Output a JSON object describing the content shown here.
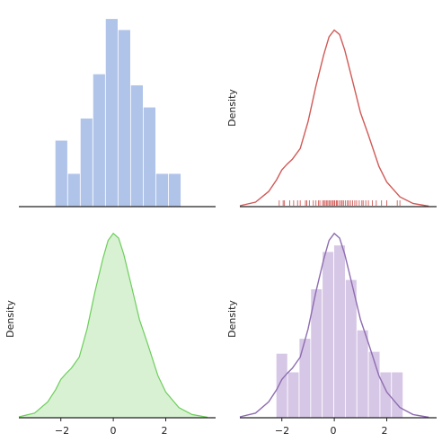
{
  "chart_data": [
    {
      "type": "bar",
      "panel": "top-left",
      "bin_edges": [
        -2.22,
        -1.74,
        -1.26,
        -0.78,
        -0.3,
        0.18,
        0.66,
        1.14,
        1.62,
        2.1,
        2.58
      ],
      "counts": [
        6,
        3,
        8,
        12,
        17,
        16,
        11,
        9,
        3,
        3
      ],
      "color": "#b0c4ea",
      "xlim": [
        -3.6,
        3.9
      ],
      "ylim": [
        0,
        17.3
      ],
      "xlabel": "",
      "ylabel": "",
      "grid": false,
      "legend": null
    },
    {
      "type": "line",
      "panel": "top-right",
      "kde_x": [
        -3.6,
        -3.0,
        -2.5,
        -2.2,
        -2.0,
        -1.8,
        -1.6,
        -1.3,
        -1.0,
        -0.7,
        -0.4,
        -0.2,
        0.0,
        0.2,
        0.4,
        0.7,
        1.0,
        1.3,
        1.7,
        2.0,
        2.5,
        3.0,
        3.6
      ],
      "kde_y": [
        0.002,
        0.01,
        0.034,
        0.06,
        0.082,
        0.095,
        0.106,
        0.13,
        0.19,
        0.27,
        0.34,
        0.38,
        0.395,
        0.385,
        0.35,
        0.28,
        0.21,
        0.16,
        0.09,
        0.055,
        0.022,
        0.007,
        0.001
      ],
      "rug": [
        -2.1,
        -1.95,
        -1.9,
        -1.7,
        -1.55,
        -1.4,
        -1.3,
        -1.1,
        -1.05,
        -0.95,
        -0.8,
        -0.7,
        -0.6,
        -0.55,
        -0.45,
        -0.4,
        -0.35,
        -0.3,
        -0.25,
        -0.2,
        -0.15,
        -0.1,
        -0.05,
        0.0,
        0.02,
        0.08,
        0.12,
        0.18,
        0.25,
        0.3,
        0.35,
        0.42,
        0.5,
        0.55,
        0.62,
        0.7,
        0.78,
        0.85,
        0.95,
        1.05,
        1.1,
        1.2,
        1.3,
        1.45,
        1.6,
        1.8,
        2.0,
        2.4,
        2.5
      ],
      "color": "#d05a57",
      "xlim": [
        -3.6,
        3.9
      ],
      "ylim": [
        0,
        0.41
      ],
      "xlabel": "",
      "ylabel": "Density",
      "grid": false,
      "legend": null
    },
    {
      "type": "area",
      "panel": "bottom-left",
      "kde_x": [
        -3.6,
        -3.0,
        -2.5,
        -2.2,
        -2.0,
        -1.8,
        -1.6,
        -1.3,
        -1.0,
        -0.7,
        -0.4,
        -0.2,
        0.0,
        0.2,
        0.4,
        0.7,
        1.0,
        1.3,
        1.7,
        2.0,
        2.5,
        3.0,
        3.6
      ],
      "kde_y": [
        0.002,
        0.01,
        0.034,
        0.06,
        0.082,
        0.095,
        0.106,
        0.13,
        0.19,
        0.27,
        0.34,
        0.38,
        0.395,
        0.385,
        0.35,
        0.28,
        0.21,
        0.16,
        0.09,
        0.055,
        0.022,
        0.007,
        0.001
      ],
      "line_color": "#6dce5b",
      "fill_color": "#d8f1d3",
      "xlim": [
        -3.6,
        3.9
      ],
      "ylim": [
        0,
        0.41
      ],
      "xticks": [
        -2,
        0,
        2
      ],
      "xlabel": "",
      "ylabel": "Density",
      "grid": false,
      "legend": null
    },
    {
      "type": "bar",
      "panel": "bottom-right",
      "bin_edges": [
        -2.22,
        -1.78,
        -1.34,
        -0.9,
        -0.46,
        -0.02,
        0.42,
        0.86,
        1.3,
        1.74,
        2.18,
        2.62
      ],
      "density": [
        0.138,
        0.098,
        0.17,
        0.276,
        0.356,
        0.37,
        0.296,
        0.188,
        0.142,
        0.098,
        0.098
      ],
      "kde_x": [
        -3.6,
        -3.0,
        -2.5,
        -2.2,
        -2.0,
        -1.8,
        -1.6,
        -1.3,
        -1.0,
        -0.7,
        -0.4,
        -0.2,
        0.0,
        0.2,
        0.4,
        0.7,
        1.0,
        1.3,
        1.7,
        2.0,
        2.5,
        3.0,
        3.6
      ],
      "kde_y": [
        0.002,
        0.01,
        0.034,
        0.06,
        0.082,
        0.095,
        0.106,
        0.13,
        0.19,
        0.27,
        0.34,
        0.38,
        0.395,
        0.385,
        0.35,
        0.28,
        0.21,
        0.16,
        0.09,
        0.055,
        0.022,
        0.007,
        0.001
      ],
      "bar_color": "#d6c7e6",
      "line_color": "#8e6db0",
      "xlim": [
        -3.6,
        3.9
      ],
      "ylim": [
        0,
        0.41
      ],
      "xticks": [
        -2,
        0,
        2
      ],
      "xlabel": "",
      "ylabel": "Density",
      "grid": false,
      "legend": null
    }
  ],
  "labels": {
    "ylabel_tr": "Density",
    "ylabel_bl": "Density",
    "ylabel_br": "Density",
    "bl_tick_m2": "−2",
    "bl_tick_0": "0",
    "bl_tick_2": "2",
    "br_tick_m2": "−2",
    "br_tick_0": "0",
    "br_tick_2": "2"
  }
}
